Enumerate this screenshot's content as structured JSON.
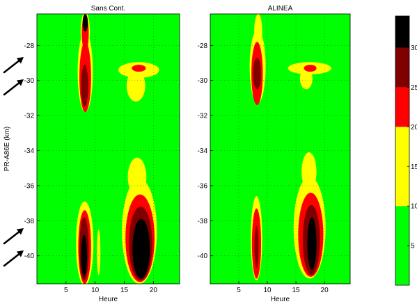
{
  "chart_data": [
    {
      "type": "heatmap",
      "title": "Sans Cont.",
      "xlabel": "Heure",
      "ylabel": "PR-A86E (km)",
      "xlim": [
        0,
        24.5
      ],
      "ylim": [
        -41.6,
        -26.2
      ],
      "xticks": [
        5,
        10,
        15,
        20
      ],
      "yticks": [
        -28,
        -30,
        -32,
        -34,
        -36,
        -38,
        -40
      ],
      "grid": true,
      "blobs": [
        {
          "level": 1,
          "cx": 8.3,
          "cy": -29.5,
          "rx": 1.3,
          "ry": 2.3
        },
        {
          "level": 1,
          "cx": 8.3,
          "cy": -27.2,
          "rx": 0.8,
          "ry": 1.1
        },
        {
          "level": 2,
          "cx": 8.3,
          "cy": -29.8,
          "rx": 1.0,
          "ry": 2.0
        },
        {
          "level": 2,
          "cx": 8.3,
          "cy": -27.3,
          "rx": 0.6,
          "ry": 1.0
        },
        {
          "level": 3,
          "cx": 8.2,
          "cy": -30.3,
          "rx": 0.6,
          "ry": 1.2
        },
        {
          "level": 4,
          "cx": 8.3,
          "cy": -26.7,
          "rx": 0.45,
          "ry": 0.5
        },
        {
          "level": 1,
          "cx": 17.5,
          "cy": -29.4,
          "rx": 3.5,
          "ry": 0.45
        },
        {
          "level": 1,
          "cx": 17.0,
          "cy": -30.3,
          "rx": 1.6,
          "ry": 0.9
        },
        {
          "level": 2,
          "cx": 17.5,
          "cy": -29.3,
          "rx": 1.2,
          "ry": 0.2
        },
        {
          "level": 1,
          "cx": 8.2,
          "cy": -39.3,
          "rx": 1.5,
          "ry": 2.4
        },
        {
          "level": 2,
          "cx": 8.2,
          "cy": -39.5,
          "rx": 1.1,
          "ry": 2.1
        },
        {
          "level": 3,
          "cx": 8.1,
          "cy": -39.6,
          "rx": 0.8,
          "ry": 1.8
        },
        {
          "level": 4,
          "cx": 8.1,
          "cy": -40.0,
          "rx": 0.5,
          "ry": 1.2
        },
        {
          "level": 1,
          "cx": 17.6,
          "cy": -38.6,
          "rx": 3.0,
          "ry": 3.0
        },
        {
          "level": 1,
          "cx": 17.2,
          "cy": -35.5,
          "rx": 1.6,
          "ry": 1.1
        },
        {
          "level": 2,
          "cx": 17.7,
          "cy": -39.0,
          "rx": 2.5,
          "ry": 2.5
        },
        {
          "level": 3,
          "cx": 17.8,
          "cy": -39.3,
          "rx": 2.0,
          "ry": 2.1
        },
        {
          "level": 4,
          "cx": 17.9,
          "cy": -39.6,
          "rx": 1.5,
          "ry": 1.7
        },
        {
          "level": 1,
          "cx": 10.6,
          "cy": -39.8,
          "rx": 0.3,
          "ry": 1.3
        }
      ]
    },
    {
      "type": "heatmap",
      "title": "ALINEA",
      "xlabel": "Heure",
      "ylabel": "",
      "xlim": [
        0,
        24.5
      ],
      "ylim": [
        -41.6,
        -26.2
      ],
      "xticks": [
        5,
        10,
        15,
        20
      ],
      "yticks": [
        -28,
        -30,
        -32,
        -34,
        -36,
        -38,
        -40
      ],
      "grid": true,
      "blobs": [
        {
          "level": 1,
          "cx": 8.3,
          "cy": -29.2,
          "rx": 1.4,
          "ry": 2.1
        },
        {
          "level": 1,
          "cx": 8.4,
          "cy": -27.2,
          "rx": 0.7,
          "ry": 1.0
        },
        {
          "level": 2,
          "cx": 8.2,
          "cy": -29.6,
          "rx": 1.0,
          "ry": 1.8
        },
        {
          "level": 3,
          "cx": 8.2,
          "cy": -29.6,
          "rx": 0.7,
          "ry": 0.9
        },
        {
          "level": 1,
          "cx": 17.4,
          "cy": -29.3,
          "rx": 3.8,
          "ry": 0.35
        },
        {
          "level": 1,
          "cx": 16.8,
          "cy": -29.9,
          "rx": 1.1,
          "ry": 0.6
        },
        {
          "level": 2,
          "cx": 17.5,
          "cy": -29.3,
          "rx": 1.1,
          "ry": 0.2
        },
        {
          "level": 1,
          "cx": 8.1,
          "cy": -39.0,
          "rx": 1.0,
          "ry": 2.4
        },
        {
          "level": 2,
          "cx": 8.1,
          "cy": -39.3,
          "rx": 0.8,
          "ry": 2.0
        },
        {
          "level": 3,
          "cx": 8.1,
          "cy": -39.5,
          "rx": 0.35,
          "ry": 1.2
        },
        {
          "level": 1,
          "cx": 17.4,
          "cy": -38.4,
          "rx": 2.8,
          "ry": 2.9
        },
        {
          "level": 1,
          "cx": 17.3,
          "cy": -35.2,
          "rx": 1.3,
          "ry": 1.1
        },
        {
          "level": 2,
          "cx": 17.6,
          "cy": -38.8,
          "rx": 2.2,
          "ry": 2.4
        },
        {
          "level": 3,
          "cx": 17.7,
          "cy": -39.1,
          "rx": 1.5,
          "ry": 2.0
        },
        {
          "level": 4,
          "cx": 17.8,
          "cy": -39.3,
          "rx": 0.8,
          "ry": 1.5
        }
      ]
    }
  ],
  "colorbar": {
    "ticks": [
      5,
      10,
      15,
      20,
      25,
      30
    ],
    "range": [
      0,
      34
    ],
    "levels": [
      {
        "from": 0,
        "to": 10,
        "color": "#00ff00"
      },
      {
        "from": 10,
        "to": 20,
        "color": "#ffff00"
      },
      {
        "from": 20,
        "to": 25,
        "color": "#ff0000"
      },
      {
        "from": 25,
        "to": 30,
        "color": "#800000"
      },
      {
        "from": 30,
        "to": 34,
        "color": "#000000"
      }
    ]
  }
}
